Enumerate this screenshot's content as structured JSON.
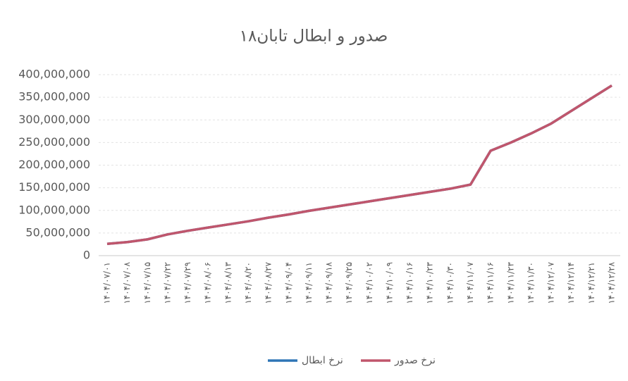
{
  "chart_data": {
    "type": "line",
    "title": "صدور و ابطال تابان۱۸",
    "categories": [
      "۱۴۰۴/۰۷/۰۱",
      "۱۴۰۴/۰۷/۰۸",
      "۱۴۰۴/۰۷/۱۵",
      "۱۴۰۴/۰۷/۲۲",
      "۱۴۰۴/۰۷/۲۹",
      "۱۴۰۴/۰۸/۰۶",
      "۱۴۰۴/۰۸/۱۳",
      "۱۴۰۴/۰۸/۲۰",
      "۱۴۰۴/۰۸/۲۷",
      "۱۴۰۴/۰۹/۰۴",
      "۱۴۰۴/۰۹/۱۱",
      "۱۴۰۴/۰۹/۱۸",
      "۱۴۰۴/۰۹/۲۵",
      "۱۴۰۴/۱۰/۰۲",
      "۱۴۰۴/۱۰/۰۹",
      "۱۴۰۴/۱۰/۱۶",
      "۱۴۰۴/۱۰/۲۳",
      "۱۴۰۴/۱۰/۳۰",
      "۱۴۰۴/۱۱/۰۷",
      "۱۴۰۴/۱۱/۱۶",
      "۱۴۰۴/۱۱/۲۳",
      "۱۴۰۴/۱۱/۳۰",
      "۱۴۰۴/۱۲/۰۷",
      "۱۴۰۴/۱۲/۱۴",
      "۱۴۰۴/۱۲/۲۱",
      "۱۴۰۴/۱۲/۲۸"
    ],
    "series": [
      {
        "name": "نرخ ابطال",
        "color": "#2e75b6",
        "values": [
          26000000,
          30000000,
          36000000,
          47000000,
          55000000,
          62000000,
          69000000,
          76000000,
          84000000,
          91000000,
          99000000,
          106000000,
          113000000,
          120000000,
          127000000,
          134000000,
          141000000,
          148000000,
          157000000,
          232000000,
          250000000,
          270000000,
          292000000,
          320000000,
          348000000,
          376000000
        ]
      },
      {
        "name": "نرخ صدور",
        "color": "#c0566c",
        "values": [
          26000000,
          30000000,
          36000000,
          47000000,
          55000000,
          62000000,
          69000000,
          76000000,
          84000000,
          91000000,
          99000000,
          106000000,
          113000000,
          120000000,
          127000000,
          134000000,
          141000000,
          148000000,
          157000000,
          232000000,
          250000000,
          270000000,
          292000000,
          320000000,
          348000000,
          376000000
        ]
      }
    ],
    "ylim": [
      0,
      400000000
    ],
    "yticks": [
      0,
      {
        "value": 50000000,
        "label": "50,000,000"
      },
      {
        "value": 100000000,
        "label": "100,000,000"
      },
      {
        "value": 150000000,
        "label": "150,000,000"
      },
      {
        "value": 200000000,
        "label": "200,000,000"
      },
      {
        "value": 250000000,
        "label": "250,000,000"
      },
      {
        "value": 300000000,
        "label": "300,000,000"
      },
      {
        "value": 350000000,
        "label": "350,000,000"
      },
      {
        "value": 400000000,
        "label": "400,000,000"
      }
    ],
    "grid": true
  }
}
